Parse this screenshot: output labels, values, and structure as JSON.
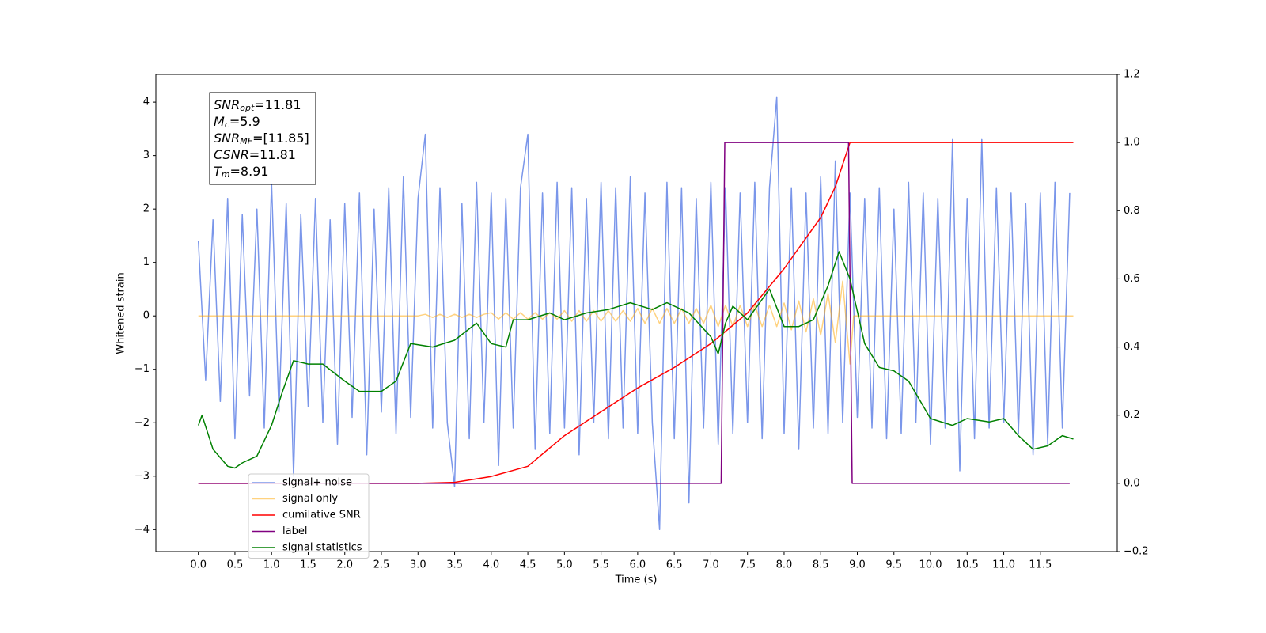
{
  "chart_data": {
    "type": "line",
    "xlabel": "Time (s)",
    "ylabel": "Whitened strain",
    "xlim": [
      -0.58,
      12.55
    ],
    "ylim": [
      -4.41,
      4.52
    ],
    "y2lim": [
      -0.2,
      1.2
    ],
    "xticks": [
      {
        "value": 0,
        "label": "0.0"
      },
      0.5,
      {
        "value": 1,
        "label": "1.0"
      },
      1.5,
      {
        "value": 2,
        "label": "2.0"
      },
      2.5,
      {
        "value": 3,
        "label": "3.0"
      },
      3.5,
      {
        "value": 4,
        "label": "4.0"
      },
      4.5,
      {
        "value": 5,
        "label": "5.0"
      },
      5.5,
      {
        "value": 6,
        "label": "6.0"
      },
      6.5,
      {
        "value": 7,
        "label": "7.0"
      },
      7.5,
      {
        "value": 8,
        "label": "8.0"
      },
      8.5,
      {
        "value": 9,
        "label": "9.0"
      },
      9.5,
      {
        "value": 10,
        "label": "10.0"
      },
      10.5,
      {
        "value": 11,
        "label": "11.0"
      },
      11.5
    ],
    "yticks": [
      {
        "value": -4,
        "label": "−4"
      },
      {
        "value": -3,
        "label": "−3"
      },
      {
        "value": -2,
        "label": "−2"
      },
      {
        "value": -1,
        "label": "−1"
      },
      0,
      1,
      2,
      3,
      4
    ],
    "y2ticks": [
      {
        "value": -0.2,
        "label": "−0.2"
      },
      {
        "value": 0,
        "label": "0.0"
      },
      0.2,
      0.4,
      0.6,
      0.8,
      {
        "value": 1,
        "label": "1.0"
      },
      1.2
    ],
    "legend": "lower left",
    "annotation": [
      {
        "main": "SNR",
        "sub": "opt",
        "rest": "=11.81"
      },
      {
        "main": "M",
        "sub": "c",
        "rest": "=5.9"
      },
      {
        "main": "SNR",
        "sub": "MF",
        "rest": "=[11.85]"
      },
      {
        "main": "CSNR",
        "rest": "=11.81"
      },
      {
        "main": "T",
        "sub": "m",
        "rest": "=8.91"
      }
    ],
    "series": [
      {
        "name": "signal+ noise",
        "color": "#4169e1",
        "alpha": 0.7,
        "x": [
          0,
          0.1,
          0.2,
          0.3,
          0.4,
          0.5,
          0.6,
          0.7,
          0.8,
          0.9,
          1,
          1.1,
          1.2,
          1.3,
          1.4,
          1.5,
          1.6,
          1.7,
          1.8,
          1.9,
          2,
          2.1,
          2.2,
          2.3,
          2.4,
          2.5,
          2.6,
          2.7,
          2.8,
          2.9,
          3,
          3.1,
          3.2,
          3.3,
          3.4,
          3.5,
          3.6,
          3.7,
          3.8,
          3.9,
          4,
          4.1,
          4.2,
          4.3,
          4.4,
          4.5,
          4.6,
          4.7,
          4.8,
          4.9,
          5,
          5.1,
          5.2,
          5.3,
          5.4,
          5.5,
          5.6,
          5.7,
          5.8,
          5.9,
          6,
          6.1,
          6.2,
          6.3,
          6.4,
          6.5,
          6.6,
          6.7,
          6.8,
          6.9,
          7,
          7.1,
          7.2,
          7.3,
          7.4,
          7.5,
          7.6,
          7.7,
          7.8,
          7.9,
          8,
          8.1,
          8.2,
          8.3,
          8.4,
          8.5,
          8.6,
          8.7,
          8.8,
          8.9,
          9,
          9.1,
          9.2,
          9.3,
          9.4,
          9.5,
          9.6,
          9.7,
          9.8,
          9.9,
          10,
          10.1,
          10.2,
          10.3,
          10.4,
          10.5,
          10.6,
          10.7,
          10.8,
          10.9,
          11,
          11.1,
          11.2,
          11.3,
          11.4,
          11.5,
          11.6,
          11.7,
          11.8,
          11.9
        ],
        "values": [
          1.4,
          -1.2,
          1.8,
          -1.6,
          2.2,
          -2.3,
          1.9,
          -1.5,
          2.0,
          -2.1,
          2.5,
          -1.8,
          2.1,
          -3.0,
          1.9,
          -1.7,
          2.2,
          -2.0,
          1.8,
          -2.4,
          2.1,
          -1.9,
          2.3,
          -2.6,
          2.0,
          -1.8,
          2.4,
          -2.2,
          2.6,
          -1.9,
          2.2,
          3.4,
          -2.1,
          2.4,
          -2.0,
          -3.2,
          2.1,
          -2.3,
          2.5,
          -2.0,
          2.3,
          -2.8,
          2.2,
          -2.1,
          2.4,
          3.4,
          -2.5,
          2.3,
          -2.2,
          2.5,
          -2.1,
          2.4,
          -2.6,
          2.2,
          -2.0,
          2.5,
          -2.3,
          2.4,
          -2.1,
          2.6,
          -2.2,
          2.3,
          -2.0,
          -4.0,
          2.5,
          -2.3,
          2.4,
          -3.5,
          2.2,
          -2.1,
          2.5,
          -2.4,
          2.4,
          -2.2,
          2.3,
          -2.0,
          2.5,
          -2.3,
          2.4,
          4.1,
          -2.2,
          2.4,
          -2.5,
          2.3,
          -2.1,
          2.6,
          -2.2,
          2.9,
          -2.0,
          2.3,
          -1.9,
          2.2,
          -2.1,
          2.4,
          -2.3,
          2.0,
          -2.2,
          2.5,
          -2.0,
          2.3,
          -2.4,
          2.2,
          -2.1,
          3.3,
          -2.9,
          2.2,
          -2.3,
          3.3,
          -2.1,
          2.4,
          -2.0,
          2.3,
          -2.2,
          2.1,
          -2.6,
          2.3,
          -2.4,
          2.5,
          -2.1,
          2.3
        ]
      },
      {
        "name": "signal only",
        "color": "#ffa500",
        "alpha": 0.5,
        "x": [
          0,
          3,
          3.1,
          3.2,
          3.3,
          3.4,
          3.5,
          3.6,
          3.7,
          3.8,
          3.9,
          4,
          4.1,
          4.2,
          4.3,
          4.4,
          4.5,
          4.6,
          4.7,
          4.8,
          4.9,
          5,
          5.1,
          5.2,
          5.3,
          5.4,
          5.5,
          5.6,
          5.7,
          5.8,
          5.9,
          6,
          6.1,
          6.2,
          6.3,
          6.4,
          6.5,
          6.6,
          6.7,
          6.8,
          6.9,
          7,
          7.1,
          7.2,
          7.3,
          7.4,
          7.5,
          7.6,
          7.7,
          7.8,
          7.9,
          8,
          8.1,
          8.2,
          8.3,
          8.4,
          8.5,
          8.6,
          8.7,
          8.8,
          8.9,
          8.95,
          11.95
        ],
        "values": [
          0,
          0,
          0.03,
          -0.03,
          0.03,
          -0.03,
          0.03,
          -0.03,
          0.03,
          -0.03,
          0.03,
          0.06,
          -0.06,
          0.06,
          -0.06,
          0.06,
          -0.06,
          0.06,
          -0.06,
          0.06,
          -0.06,
          0.1,
          -0.1,
          0.1,
          -0.1,
          0.1,
          -0.1,
          0.1,
          -0.1,
          0.1,
          -0.1,
          0.14,
          -0.14,
          0.14,
          -0.14,
          0.14,
          -0.14,
          0.14,
          -0.14,
          0.14,
          -0.14,
          0.2,
          -0.2,
          0.2,
          -0.2,
          0.2,
          -0.2,
          0.2,
          -0.2,
          0.2,
          -0.2,
          0.24,
          -0.26,
          0.28,
          -0.3,
          0.32,
          -0.36,
          0.42,
          -0.5,
          0.65,
          -0.9,
          0,
          0
        ]
      },
      {
        "name": "cumilative SNR",
        "color": "#ff0000",
        "axis": "y2",
        "x": [
          0,
          3,
          3.5,
          4,
          4.5,
          5,
          5.5,
          6,
          6.5,
          7,
          7.5,
          8,
          8.5,
          8.7,
          8.9,
          8.91,
          11.95
        ],
        "values": [
          0,
          0,
          0.003,
          0.02,
          0.05,
          0.14,
          0.21,
          0.28,
          0.34,
          0.41,
          0.5,
          0.63,
          0.78,
          0.87,
          1.0,
          1.0,
          1.0
        ]
      },
      {
        "name": "label",
        "color": "#800080",
        "axis": "y2",
        "x": [
          0,
          7.14,
          7.19,
          8.88,
          8.93,
          11.9
        ],
        "values": [
          0,
          0,
          1,
          1,
          0,
          0
        ]
      },
      {
        "name": "signal statistics",
        "color": "#008000",
        "axis": "y2",
        "x": [
          0,
          0.05,
          0.2,
          0.4,
          0.5,
          0.6,
          0.8,
          1,
          1.15,
          1.3,
          1.5,
          1.7,
          2,
          2.2,
          2.5,
          2.7,
          2.9,
          3.2,
          3.5,
          3.8,
          4,
          4.2,
          4.3,
          4.5,
          4.8,
          5,
          5.3,
          5.6,
          5.9,
          6.2,
          6.4,
          6.7,
          7,
          7.1,
          7.2,
          7.3,
          7.5,
          7.8,
          8,
          8.2,
          8.4,
          8.6,
          8.75,
          8.9,
          9.1,
          9.3,
          9.5,
          9.7,
          10,
          10.3,
          10.5,
          10.8,
          11,
          11.2,
          11.4,
          11.6,
          11.8,
          11.95
        ],
        "values": [
          0.17,
          0.2,
          0.1,
          0.05,
          0.045,
          0.06,
          0.08,
          0.17,
          0.27,
          0.36,
          0.35,
          0.35,
          0.3,
          0.27,
          0.27,
          0.3,
          0.41,
          0.4,
          0.42,
          0.47,
          0.41,
          0.4,
          0.48,
          0.48,
          0.5,
          0.48,
          0.5,
          0.51,
          0.53,
          0.51,
          0.53,
          0.5,
          0.43,
          0.38,
          0.47,
          0.52,
          0.48,
          0.57,
          0.46,
          0.46,
          0.48,
          0.58,
          0.68,
          0.6,
          0.41,
          0.34,
          0.33,
          0.3,
          0.19,
          0.17,
          0.19,
          0.18,
          0.19,
          0.14,
          0.1,
          0.11,
          0.14,
          0.13
        ]
      }
    ]
  }
}
